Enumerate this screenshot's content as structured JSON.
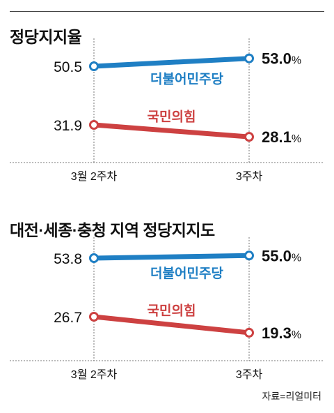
{
  "source": "자료=리얼미터",
  "colors": {
    "democratic": "#1f7fc4",
    "ppp": "#cd4141",
    "axis": "#777777"
  },
  "chart_data": [
    {
      "type": "line",
      "title": "정당지지율",
      "categories": [
        "3월 2주차",
        "3주차"
      ],
      "series": [
        {
          "name": "더불어민주당",
          "values": [
            50.5,
            53.0
          ],
          "labels": [
            "50.5",
            "53.0"
          ]
        },
        {
          "name": "국민의힘",
          "values": [
            31.9,
            28.1
          ],
          "labels": [
            "31.9",
            "28.1"
          ]
        }
      ],
      "unit": "%",
      "grid": false,
      "legend": "inline"
    },
    {
      "type": "line",
      "title": "대전·세종·충청 지역 정당지지도",
      "categories": [
        "3월 2주차",
        "3주차"
      ],
      "series": [
        {
          "name": "더불어민주당",
          "values": [
            53.8,
            55.0
          ],
          "labels": [
            "53.8",
            "55.0"
          ]
        },
        {
          "name": "국민의힘",
          "values": [
            26.7,
            19.3
          ],
          "labels": [
            "26.7",
            "19.3"
          ]
        }
      ],
      "unit": "%",
      "grid": false,
      "legend": "inline"
    }
  ]
}
